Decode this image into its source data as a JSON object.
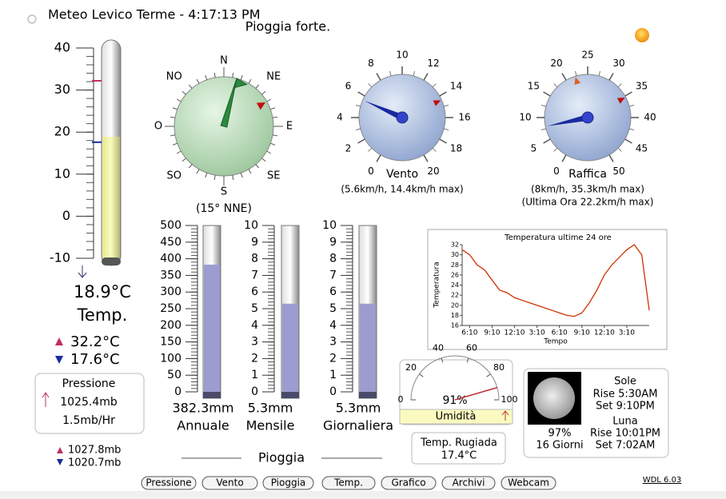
{
  "header": {
    "title": "Meteo Levico Terme - 4:17:13 PM",
    "forecast": "Pioggia forte."
  },
  "temperature": {
    "lim": [
      -10,
      40
    ],
    "ticks": [
      -10,
      0,
      10,
      20,
      30,
      40
    ],
    "current": {
      "value": 18.9,
      "label": "18.9°C"
    },
    "caption": "Temp.",
    "max": {
      "value": 32.2,
      "label": "32.2°C"
    },
    "min": {
      "value": 17.6,
      "label": "17.6°C"
    }
  },
  "pressure": {
    "title": "Pressione",
    "value": "1025.4mb",
    "trend": "1.5mb/Hr",
    "high": "1027.8mb",
    "low": "1020.7mb"
  },
  "wind_direction": {
    "labels": [
      "N",
      "NE",
      "E",
      "SE",
      "S",
      "SO",
      "O",
      "NO"
    ],
    "value": 15,
    "label": "(15° NNE)",
    "max_marker": 60
  },
  "wind": {
    "caption": "Vento",
    "lim": [
      0,
      20
    ],
    "ticks": [
      0,
      2,
      4,
      6,
      8,
      10,
      12,
      14,
      16,
      18,
      20
    ],
    "value": 5.6,
    "max": 14.4,
    "summary": "(5.6km/h, 14.4km/h max)"
  },
  "gust": {
    "caption": "Raffica",
    "lim": [
      0,
      50
    ],
    "ticks": [
      0,
      5,
      10,
      15,
      20,
      25,
      30,
      35,
      40,
      45,
      50
    ],
    "value": 8,
    "max": 35.3,
    "last_hour": 22.2,
    "summary": "(8km/h, 35.3km/h max)",
    "last_hour_text": "(Ultima Ora 22.2km/h max)"
  },
  "rain": {
    "title": "Pioggia",
    "gauges": [
      {
        "caption": "Annuale",
        "value": 382.3,
        "label": "382.3mm",
        "lim": [
          0,
          500
        ],
        "ticks": [
          0,
          50,
          100,
          150,
          200,
          250,
          300,
          350,
          400,
          450,
          500
        ]
      },
      {
        "caption": "Mensile",
        "value": 5.3,
        "label": "5.3mm",
        "lim": [
          0,
          10
        ],
        "ticks": [
          0,
          1,
          2,
          3,
          4,
          5,
          6,
          7,
          8,
          9,
          10
        ]
      },
      {
        "caption": "Giornaliera",
        "value": 5.3,
        "label": "5.3mm",
        "lim": [
          0,
          10
        ],
        "ticks": [
          0,
          1,
          2,
          3,
          4,
          5,
          6,
          7,
          8,
          9,
          10
        ]
      }
    ]
  },
  "humidity": {
    "caption": "Umidità",
    "lim": [
      0,
      100
    ],
    "ticks": [
      0,
      20,
      40,
      60,
      80,
      100
    ],
    "value": 91,
    "label": "91%"
  },
  "dew_point": {
    "caption": "Temp. Rugiada",
    "value": "17.4°C"
  },
  "temp_chart": {
    "title": "Temperatura ultime 24 ore",
    "y_label": "Temperatura",
    "x_label": "Tempo",
    "xlim": [
      0,
      25
    ],
    "ylim": [
      16,
      32
    ],
    "yticks": [
      16,
      18,
      20,
      22,
      24,
      26,
      28,
      30,
      32
    ],
    "xticks": [
      {
        "value": 1,
        "label": "6:10"
      },
      {
        "value": 4,
        "label": "9:10"
      },
      {
        "value": 7,
        "label": "12:10"
      },
      {
        "value": 10,
        "label": "3:10"
      },
      {
        "value": 13,
        "label": "6:10"
      },
      {
        "value": 16,
        "label": "9:10"
      },
      {
        "value": 19,
        "label": "12:10"
      },
      {
        "value": 22,
        "label": "3:10"
      }
    ],
    "x": [
      0,
      1,
      2,
      3,
      4,
      5,
      6,
      7,
      8,
      9,
      10,
      11,
      12,
      13,
      14,
      15,
      16,
      17,
      18,
      19,
      20,
      21,
      22,
      23,
      24,
      25
    ],
    "values": [
      31,
      30,
      28,
      27,
      25,
      23,
      22.5,
      21.5,
      21,
      20.5,
      20,
      19.5,
      19,
      18.5,
      18,
      17.8,
      18.5,
      20.5,
      23,
      26,
      28,
      29.5,
      31,
      32,
      30,
      19
    ],
    "color": "#cc3300"
  },
  "astro": {
    "sun_title": "Sole",
    "sun_rise": "Rise 5:30AM",
    "sun_set": "Set 9:10PM",
    "moon_title": "Luna",
    "moon_rise": "Rise 10:01PM",
    "moon_set": "Set 7:02AM",
    "moon_illumination": "97%",
    "moon_age": "16 Giorni"
  },
  "buttons": [
    "Pressione",
    "Vento",
    "Pioggia",
    "Temp.",
    "Grafico",
    "Archivi",
    "Webcam"
  ],
  "version": "WDL 6.03"
}
